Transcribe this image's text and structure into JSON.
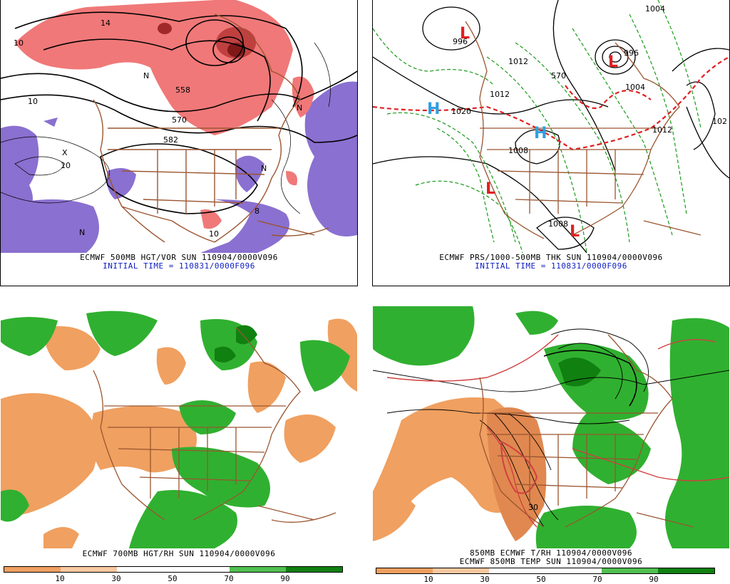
{
  "panels": {
    "top_left": {
      "caption_line1": "ECMWF 500MB HGT/VOR SUN 110904/0000V096",
      "caption_line2": "INITIAL TIME = 110831/0000F096",
      "labels": [
        "10",
        "10",
        "10",
        "558",
        "582",
        "X",
        "N",
        "N",
        "N",
        "10",
        "8",
        "N",
        "570",
        "14"
      ]
    },
    "top_right": {
      "caption_line1": "ECMWF PRS/1000-500MB THK SUN 110904/0000V096",
      "caption_line2": "INITIAL TIME = 110831/0000F096",
      "labels": [
        "996",
        "1004",
        "1020",
        "1012",
        "1012",
        "102",
        "1008",
        "1004",
        "996",
        "570",
        "1012",
        "1008"
      ],
      "centers": [
        {
          "kind": "L",
          "color": "#e02020"
        },
        {
          "kind": "L",
          "color": "#e02020"
        },
        {
          "kind": "L",
          "color": "#e02020"
        },
        {
          "kind": "L",
          "color": "#e02020"
        },
        {
          "kind": "H",
          "color": "#30a0e0"
        },
        {
          "kind": "H",
          "color": "#30a0e0"
        }
      ]
    },
    "bottom_left": {
      "caption_line1": "ECMWF 700MB HGT/RH SUN 110904/0000V096",
      "colorbar_ticks": [
        "10",
        "30",
        "50",
        "70",
        "90"
      ]
    },
    "bottom_right": {
      "caption_line1": "850MB ECMWF T/RH 110904/0000V096",
      "caption_line2": "ECMWF 850MB TEMP SUN 110904/0000V096",
      "labels": [
        "30"
      ],
      "colorbar_ticks": [
        "10",
        "30",
        "50",
        "70",
        "90"
      ]
    }
  },
  "colors": {
    "vorticity_red": "#f07878",
    "vorticity_dark": "#a02828",
    "negative_purple": "#8a70d0",
    "map_brown": "#9a5530",
    "contour_black": "#000000",
    "thickness_green": "#1a9a1a",
    "thickness_red": "#e02020",
    "rh_dry_orange": "#f0a060",
    "rh_dry_light": "#f8c8a0",
    "rh_moist_green": "#30b030",
    "rh_moist_dark": "#108010",
    "temp_red": "#d04040"
  },
  "colorbar_colors": [
    "#f0a060",
    "#f8c8a0",
    "#ffffff",
    "#ffffff",
    "#50c050",
    "#108010"
  ]
}
